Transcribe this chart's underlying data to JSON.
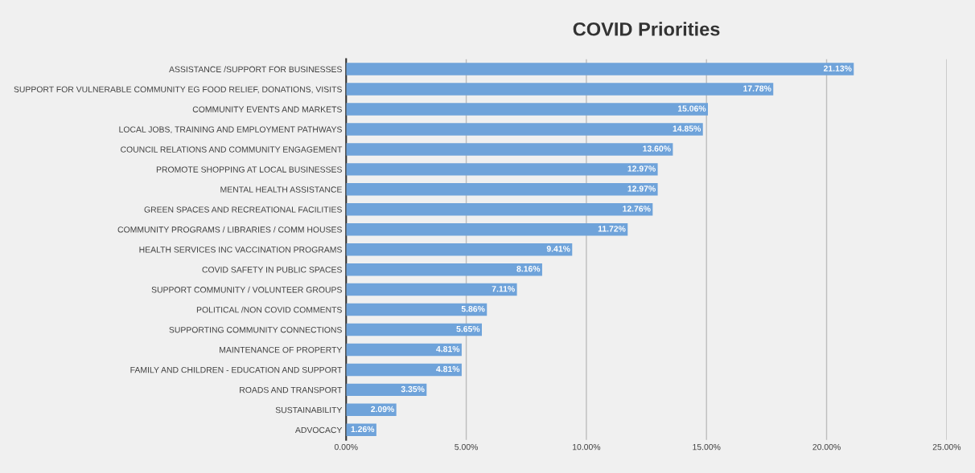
{
  "chart_data": {
    "type": "bar",
    "orientation": "horizontal",
    "title": "COVID Priorities",
    "categories": [
      "ASSISTANCE /SUPPORT FOR BUSINESSES",
      "SUPPORT FOR VULNERABLE COMMUNITY EG FOOD RELIEF, DONATIONS, VISITS",
      "COMMUNITY EVENTS AND MARKETS",
      "LOCAL JOBS, TRAINING AND EMPLOYMENT PATHWAYS",
      "COUNCIL RELATIONS AND COMMUNITY ENGAGEMENT",
      "PROMOTE SHOPPING AT LOCAL BUSINESSES",
      "MENTAL HEALTH ASSISTANCE",
      "GREEN SPACES AND RECREATIONAL FACILITIES",
      "COMMUNITY PROGRAMS / LIBRARIES / COMM HOUSES",
      "HEALTH SERVICES INC VACCINATION PROGRAMS",
      "COVID SAFETY IN PUBLIC SPACES",
      "SUPPORT COMMUNITY / VOLUNTEER GROUPS",
      "POLITICAL /NON COVID COMMENTS",
      "SUPPORTING COMMUNITY CONNECTIONS",
      "MAINTENANCE OF PROPERTY",
      "FAMILY AND CHILDREN - EDUCATION AND SUPPORT",
      "ROADS AND TRANSPORT",
      "SUSTAINABILITY",
      "ADVOCACY"
    ],
    "values": [
      21.13,
      17.78,
      15.06,
      14.85,
      13.6,
      12.97,
      12.97,
      12.76,
      11.72,
      9.41,
      8.16,
      7.11,
      5.86,
      5.65,
      4.81,
      4.81,
      3.35,
      2.09,
      1.26
    ],
    "value_labels": [
      "21.13%",
      "17.78%",
      "15.06%",
      "14.85%",
      "13.60%",
      "12.97%",
      "12.97%",
      "12.76%",
      "11.72%",
      "9.41%",
      "8.16%",
      "7.11%",
      "5.86%",
      "5.65%",
      "4.81%",
      "4.81%",
      "3.35%",
      "2.09%",
      "1.26%"
    ],
    "color": "#6fa3da",
    "xlim": [
      0,
      25
    ],
    "xticks": [
      {
        "value": 0,
        "label": "0.00%"
      },
      {
        "value": 5,
        "label": "5.00%"
      },
      {
        "value": 10,
        "label": "10.00%"
      },
      {
        "value": 15,
        "label": "15.00%"
      },
      {
        "value": 20,
        "label": "20.00%"
      },
      {
        "value": 25,
        "label": "25.00%"
      }
    ],
    "grid": "x"
  }
}
